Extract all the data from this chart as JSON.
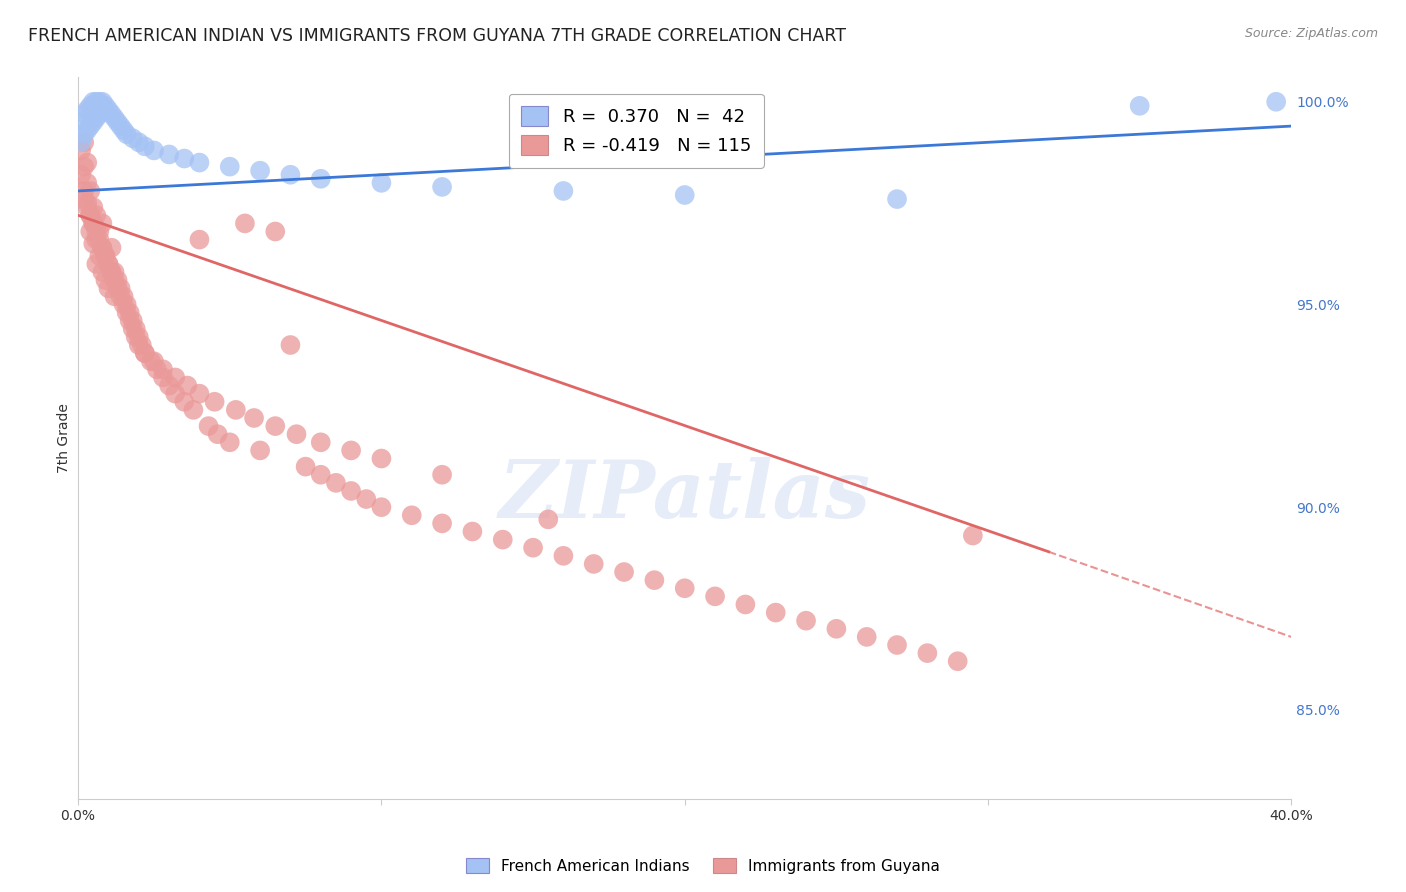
{
  "title": "FRENCH AMERICAN INDIAN VS IMMIGRANTS FROM GUYANA 7TH GRADE CORRELATION CHART",
  "source": "Source: ZipAtlas.com",
  "ylabel": "7th Grade",
  "xlim": [
    0.0,
    0.4
  ],
  "ylim": [
    0.828,
    1.006
  ],
  "yticks": [
    0.85,
    0.9,
    0.95,
    1.0
  ],
  "ytick_labels": [
    "85.0%",
    "90.0%",
    "95.0%",
    "100.0%"
  ],
  "blue_color": "#a4c2f4",
  "pink_color": "#ea9999",
  "blue_line_color": "#3c78d8",
  "pink_line_color": "#e06666",
  "background_color": "#ffffff",
  "grid_color": "#cccccc",
  "title_fontsize": 12.5,
  "axis_label_fontsize": 10,
  "tick_fontsize": 10,
  "legend_fontsize": 13,
  "watermark_text": "ZIPatlas",
  "blue_scatter_x": [
    0.001,
    0.001,
    0.002,
    0.002,
    0.003,
    0.003,
    0.004,
    0.004,
    0.005,
    0.005,
    0.006,
    0.006,
    0.007,
    0.007,
    0.008,
    0.008,
    0.009,
    0.01,
    0.011,
    0.012,
    0.013,
    0.014,
    0.015,
    0.016,
    0.018,
    0.02,
    0.022,
    0.025,
    0.03,
    0.035,
    0.04,
    0.05,
    0.06,
    0.07,
    0.08,
    0.1,
    0.12,
    0.16,
    0.2,
    0.27,
    0.35,
    0.395
  ],
  "blue_scatter_y": [
    0.99,
    0.995,
    0.992,
    0.997,
    0.993,
    0.998,
    0.994,
    0.999,
    0.995,
    1.0,
    0.996,
    1.0,
    0.997,
    1.0,
    0.998,
    1.0,
    0.999,
    0.998,
    0.997,
    0.996,
    0.995,
    0.994,
    0.993,
    0.992,
    0.991,
    0.99,
    0.989,
    0.988,
    0.987,
    0.986,
    0.985,
    0.984,
    0.983,
    0.982,
    0.981,
    0.98,
    0.979,
    0.978,
    0.977,
    0.976,
    0.999,
    1.0
  ],
  "pink_scatter_x": [
    0.001,
    0.001,
    0.002,
    0.002,
    0.002,
    0.003,
    0.003,
    0.003,
    0.004,
    0.004,
    0.004,
    0.005,
    0.005,
    0.005,
    0.006,
    0.006,
    0.006,
    0.007,
    0.007,
    0.008,
    0.008,
    0.008,
    0.009,
    0.009,
    0.01,
    0.01,
    0.011,
    0.011,
    0.012,
    0.012,
    0.013,
    0.014,
    0.015,
    0.016,
    0.017,
    0.018,
    0.019,
    0.02,
    0.021,
    0.022,
    0.024,
    0.026,
    0.028,
    0.03,
    0.032,
    0.035,
    0.038,
    0.04,
    0.043,
    0.046,
    0.05,
    0.055,
    0.06,
    0.065,
    0.07,
    0.075,
    0.08,
    0.085,
    0.09,
    0.095,
    0.1,
    0.11,
    0.12,
    0.13,
    0.14,
    0.15,
    0.16,
    0.17,
    0.18,
    0.19,
    0.2,
    0.21,
    0.22,
    0.23,
    0.24,
    0.25,
    0.26,
    0.27,
    0.28,
    0.29,
    0.002,
    0.003,
    0.004,
    0.005,
    0.006,
    0.007,
    0.008,
    0.009,
    0.01,
    0.011,
    0.012,
    0.013,
    0.014,
    0.015,
    0.016,
    0.017,
    0.018,
    0.019,
    0.02,
    0.022,
    0.025,
    0.028,
    0.032,
    0.036,
    0.04,
    0.045,
    0.052,
    0.058,
    0.065,
    0.072,
    0.08,
    0.09,
    0.1,
    0.12,
    0.155,
    0.295
  ],
  "pink_scatter_y": [
    0.982,
    0.988,
    0.984,
    0.99,
    0.978,
    0.98,
    0.975,
    0.985,
    0.972,
    0.978,
    0.968,
    0.974,
    0.965,
    0.97,
    0.966,
    0.972,
    0.96,
    0.962,
    0.968,
    0.958,
    0.964,
    0.97,
    0.956,
    0.962,
    0.954,
    0.96,
    0.958,
    0.964,
    0.952,
    0.958,
    0.956,
    0.954,
    0.952,
    0.95,
    0.948,
    0.946,
    0.944,
    0.942,
    0.94,
    0.938,
    0.936,
    0.934,
    0.932,
    0.93,
    0.928,
    0.926,
    0.924,
    0.966,
    0.92,
    0.918,
    0.916,
    0.97,
    0.914,
    0.968,
    0.94,
    0.91,
    0.908,
    0.906,
    0.904,
    0.902,
    0.9,
    0.898,
    0.896,
    0.894,
    0.892,
    0.89,
    0.888,
    0.886,
    0.884,
    0.882,
    0.88,
    0.878,
    0.876,
    0.874,
    0.872,
    0.87,
    0.868,
    0.866,
    0.864,
    0.862,
    0.976,
    0.974,
    0.972,
    0.97,
    0.968,
    0.966,
    0.964,
    0.962,
    0.96,
    0.958,
    0.956,
    0.954,
    0.952,
    0.95,
    0.948,
    0.946,
    0.944,
    0.942,
    0.94,
    0.938,
    0.936,
    0.934,
    0.932,
    0.93,
    0.928,
    0.926,
    0.924,
    0.922,
    0.92,
    0.918,
    0.916,
    0.914,
    0.912,
    0.908,
    0.897,
    0.893
  ],
  "pink_trendline_x0": 0.0,
  "pink_trendline_y0": 0.972,
  "pink_trendline_x1": 0.32,
  "pink_trendline_y1": 0.889,
  "pink_trendline_xdash0": 0.32,
  "pink_trendline_ydash0": 0.889,
  "pink_trendline_xdash1": 0.4,
  "pink_trendline_ydash1": 0.868,
  "blue_trendline_x0": 0.0,
  "blue_trendline_y0": 0.978,
  "blue_trendline_x1": 0.4,
  "blue_trendline_y1": 0.994
}
